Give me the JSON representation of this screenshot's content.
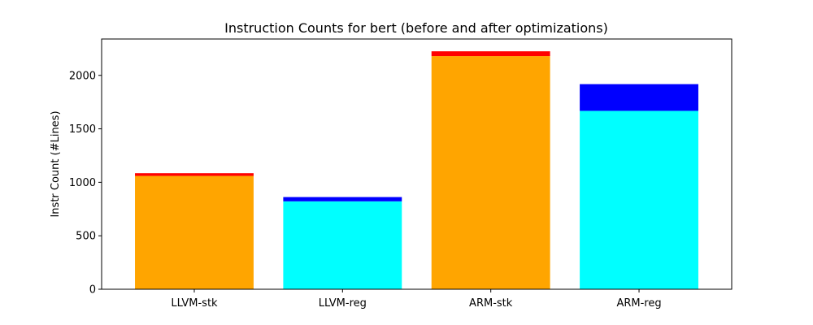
{
  "chart_data": {
    "type": "bar",
    "stacked": true,
    "title": "Instruction Counts for bert (before and after optimizations)",
    "xlabel": "",
    "ylabel": "Instr Count (#Lines)",
    "ylim": [
      0,
      2340
    ],
    "yticks": [
      0,
      500,
      1000,
      1500,
      2000
    ],
    "categories": [
      "LLVM-stk",
      "LLVM-reg",
      "ARM-stk",
      "ARM-reg"
    ],
    "grid": false,
    "legend": "none",
    "bars": [
      {
        "category": "LLVM-stk",
        "base": 1060,
        "top": 1085,
        "base_color": "#FFA500",
        "top_color": "#FF0000"
      },
      {
        "category": "LLVM-reg",
        "base": 822,
        "top": 862,
        "base_color": "#00FFFF",
        "top_color": "#0000FF"
      },
      {
        "category": "ARM-stk",
        "base": 2180,
        "top": 2225,
        "base_color": "#FFA500",
        "top_color": "#FF0000"
      },
      {
        "category": "ARM-reg",
        "base": 1668,
        "top": 1918,
        "base_color": "#00FFFF",
        "top_color": "#0000FF"
      }
    ]
  }
}
